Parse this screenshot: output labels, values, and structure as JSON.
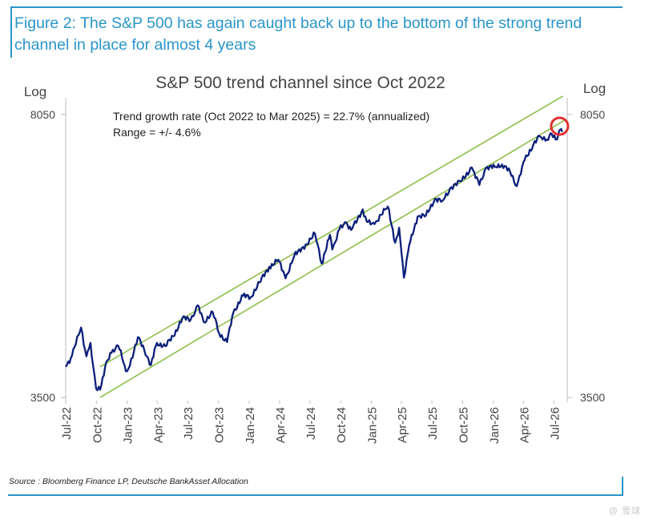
{
  "figure": {
    "title": "Figure 2: The S&P 500 has again caught back up to the bottom of the strong trend channel in place for almost 4 years",
    "source": "Source : Bloomberg Finance LP, Deutsche BankAsset Allocation",
    "signature": "@ 雪球"
  },
  "colors": {
    "accent": "#2a95c9",
    "series": "#0b1f7a",
    "channel": "#8fbe4a",
    "highlight": "#e03030",
    "axis": "#bbbbbb",
    "text": "#444444"
  },
  "chart_data": {
    "type": "line",
    "title": "S&P 500 trend channel since Oct 2022",
    "y_scale": "log",
    "ylabel_left": "Log",
    "ylabel_right": "Log",
    "ylim": [
      3500,
      8050
    ],
    "y_ticks": [
      "8050",
      "3500"
    ],
    "x_range": [
      "2022-07-01",
      "2026-08-10"
    ],
    "x_ticks": [
      {
        "date": "2022-07-01",
        "label": "Jul-22"
      },
      {
        "date": "2022-10-01",
        "label": "Oct-22"
      },
      {
        "date": "2023-01-01",
        "label": "Jan-23"
      },
      {
        "date": "2023-04-01",
        "label": "Apr-23"
      },
      {
        "date": "2023-07-01",
        "label": "Jul-23"
      },
      {
        "date": "2023-10-01",
        "label": "Oct-23"
      },
      {
        "date": "2024-01-01",
        "label": "Jan-24"
      },
      {
        "date": "2024-04-01",
        "label": "Apr-24"
      },
      {
        "date": "2024-07-01",
        "label": "Jul-24"
      },
      {
        "date": "2024-10-01",
        "label": "Oct-24"
      },
      {
        "date": "2025-01-01",
        "label": "Jan-25"
      },
      {
        "date": "2025-04-01",
        "label": "Apr-25"
      },
      {
        "date": "2025-07-01",
        "label": "Jul-25"
      },
      {
        "date": "2025-10-01",
        "label": "Oct-25"
      },
      {
        "date": "2026-01-01",
        "label": "Jan-26"
      },
      {
        "date": "2026-04-01",
        "label": "Apr-26"
      },
      {
        "date": "2026-07-01",
        "label": "Jul-26"
      }
    ],
    "annotations": [
      "Trend growth rate (Oct 2022 to Mar 2025) = 22.7% (annualized)",
      "Range = +/- 4.6%"
    ],
    "series": [
      {
        "points": [
          [
            "2022-07-01",
            3830
          ],
          [
            "2022-07-20",
            3960
          ],
          [
            "2022-08-16",
            4300
          ],
          [
            "2022-09-01",
            3950
          ],
          [
            "2022-09-13",
            4110
          ],
          [
            "2022-09-30",
            3590
          ],
          [
            "2022-10-12",
            3580
          ],
          [
            "2022-10-27",
            3830
          ],
          [
            "2022-11-15",
            3990
          ],
          [
            "2022-12-01",
            4080
          ],
          [
            "2022-12-13",
            4020
          ],
          [
            "2022-12-28",
            3780
          ],
          [
            "2023-01-05",
            3810
          ],
          [
            "2023-02-02",
            4180
          ],
          [
            "2023-03-01",
            3950
          ],
          [
            "2023-03-13",
            3850
          ],
          [
            "2023-03-31",
            4110
          ],
          [
            "2023-04-25",
            4070
          ],
          [
            "2023-05-19",
            4190
          ],
          [
            "2023-06-15",
            4420
          ],
          [
            "2023-07-10",
            4400
          ],
          [
            "2023-07-31",
            4590
          ],
          [
            "2023-08-18",
            4370
          ],
          [
            "2023-09-14",
            4500
          ],
          [
            "2023-10-03",
            4230
          ],
          [
            "2023-10-27",
            4120
          ],
          [
            "2023-11-15",
            4500
          ],
          [
            "2023-12-14",
            4720
          ],
          [
            "2024-01-05",
            4700
          ],
          [
            "2024-02-01",
            4910
          ],
          [
            "2024-03-01",
            5140
          ],
          [
            "2024-03-28",
            5250
          ],
          [
            "2024-04-19",
            4970
          ],
          [
            "2024-05-15",
            5310
          ],
          [
            "2024-06-18",
            5490
          ],
          [
            "2024-07-16",
            5670
          ],
          [
            "2024-08-05",
            5190
          ],
          [
            "2024-08-30",
            5650
          ],
          [
            "2024-09-06",
            5410
          ],
          [
            "2024-09-27",
            5740
          ],
          [
            "2024-10-18",
            5860
          ],
          [
            "2024-11-01",
            5730
          ],
          [
            "2024-12-06",
            6090
          ],
          [
            "2024-12-18",
            5870
          ],
          [
            "2025-01-10",
            5830
          ],
          [
            "2025-02-19",
            6140
          ],
          [
            "2025-03-13",
            5520
          ],
          [
            "2025-03-25",
            5770
          ],
          [
            "2025-04-08",
            4980
          ],
          [
            "2025-04-24",
            5480
          ],
          [
            "2025-05-19",
            5960
          ],
          [
            "2025-06-13",
            5980
          ],
          [
            "2025-07-10",
            6280
          ],
          [
            "2025-08-01",
            6240
          ],
          [
            "2025-08-28",
            6500
          ],
          [
            "2025-09-25",
            6610
          ],
          [
            "2025-10-28",
            6890
          ],
          [
            "2025-11-20",
            6540
          ],
          [
            "2025-12-10",
            6880
          ],
          [
            "2026-01-05",
            6900
          ],
          [
            "2026-01-27",
            6950
          ],
          [
            "2026-02-20",
            6800
          ],
          [
            "2026-03-12",
            6520
          ],
          [
            "2026-04-05",
            7050
          ],
          [
            "2026-05-01",
            7380
          ],
          [
            "2026-05-20",
            7550
          ],
          [
            "2026-06-10",
            7480
          ],
          [
            "2026-06-25",
            7600
          ],
          [
            "2026-07-10",
            7480
          ],
          [
            "2026-07-20",
            7700
          ],
          [
            "2026-07-26",
            7650
          ]
        ]
      }
    ],
    "channel": {
      "lower": [
        [
          "2022-10-12",
          3500
        ],
        [
          "2026-08-05",
          7930
        ]
      ],
      "upper": [
        [
          "2022-10-12",
          3830
        ],
        [
          "2026-07-28",
          8500
        ]
      ]
    },
    "highlight": {
      "date": "2026-07-18",
      "value": 7780
    }
  }
}
